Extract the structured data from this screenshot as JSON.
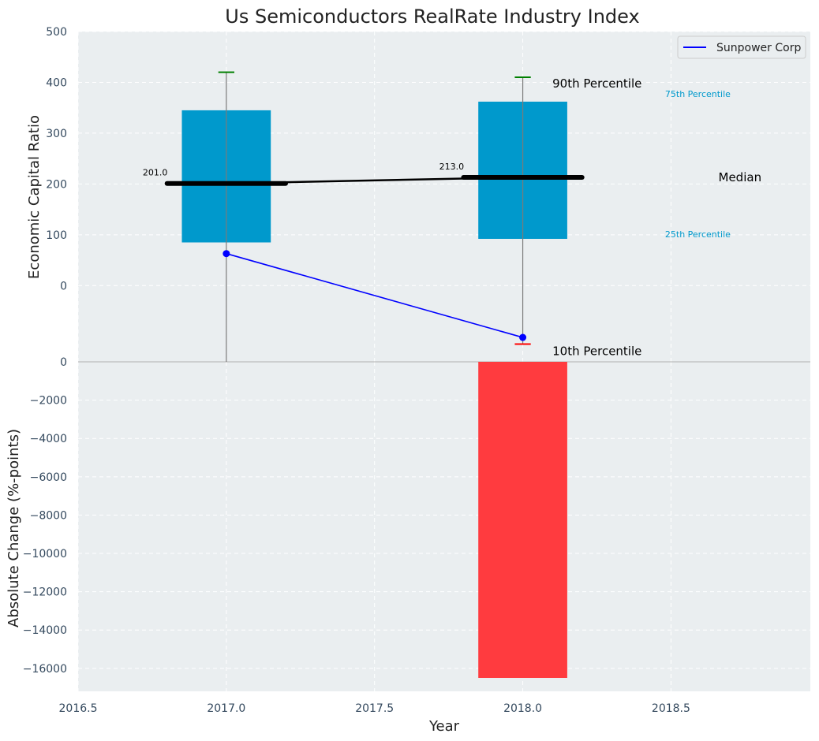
{
  "chart_data": {
    "title": "Us Semiconductors RealRate Industry Index",
    "xlabel": "Year",
    "x_ticks": [
      "2016.5",
      "2017.0",
      "2017.5",
      "2018.0",
      "2018.5"
    ],
    "xlim": [
      2016.5,
      2018.97
    ],
    "grid": true,
    "colors": {
      "background": "#eaeef0",
      "grid": "#ffffff",
      "box": "#0099cc",
      "whisker_top": "#008000",
      "whisker_bottom": "#ff0000",
      "series": "#0000ff",
      "change_bar": "#ff3b3f",
      "median": "#000000"
    },
    "top_panel": {
      "type": "box",
      "ylabel": "Economic Capital Ratio",
      "ylim": [
        -150,
        500
      ],
      "y_ticks": [
        "0",
        "100",
        "200",
        "300",
        "400",
        "500"
      ],
      "y_tick_values": [
        0,
        100,
        200,
        300,
        400,
        500
      ],
      "boxes": [
        {
          "x": 2017.0,
          "p10": -150,
          "p25": 85,
          "median": 201.0,
          "p75": 345,
          "p90": 420
        },
        {
          "x": 2018.0,
          "p10": -115,
          "p25": 92,
          "median": 213.0,
          "p75": 362,
          "p90": 410
        }
      ],
      "median_labels": [
        "201.0",
        "213.0"
      ],
      "annotations": {
        "p90": "90th Percentile",
        "p75": "75th Percentile",
        "median": "Median",
        "p25": "25th Percentile",
        "p10": "10th Percentile"
      },
      "legend": {
        "label": "Sunpower Corp",
        "placement": "top-right"
      },
      "series": {
        "name": "Sunpower Corp",
        "x": [
          2017.0,
          2018.0
        ],
        "values": [
          63,
          -102
        ]
      }
    },
    "bottom_panel": {
      "type": "bar",
      "ylabel": "Absolute Change (%-points)",
      "ylim": [
        -17200,
        0
      ],
      "y_ticks": [
        "0",
        "−2000",
        "−4000",
        "−6000",
        "−8000",
        "−10000",
        "−12000",
        "−14000",
        "−16000"
      ],
      "y_tick_values": [
        0,
        -2000,
        -4000,
        -6000,
        -8000,
        -10000,
        -12000,
        -14000,
        -16000
      ],
      "bars": [
        {
          "x": 2018.0,
          "value": -16500
        }
      ]
    }
  }
}
